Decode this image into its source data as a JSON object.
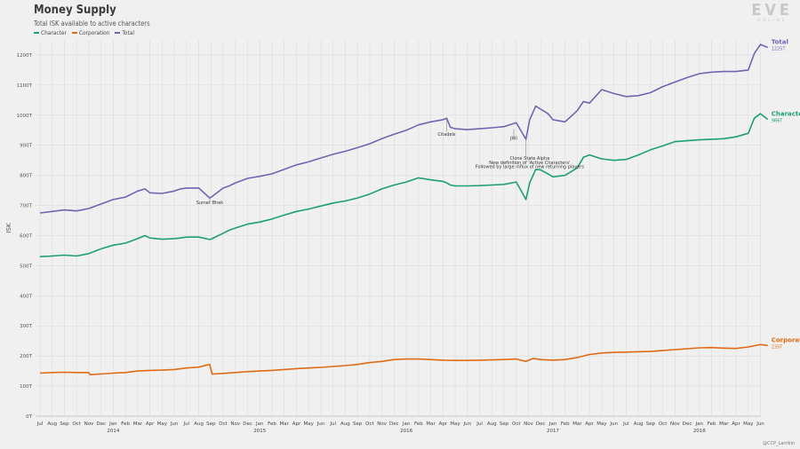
{
  "header": {
    "title": "Money Supply",
    "subtitle": "Total ISK available to active characters"
  },
  "logo": {
    "mark": "EVE",
    "sub": "ONLINE"
  },
  "credit": "@CCP_Larrikin",
  "colors": {
    "character": "#1e9e73",
    "corporation": "#e06b14",
    "total": "#7463b3",
    "grid": "#dcdcdc"
  },
  "chart_data": {
    "type": "line",
    "title": "Money Supply",
    "subtitle": "Total ISK available to active characters",
    "ylabel": "ISK",
    "xlabel": "",
    "ylim": [
      0,
      1250
    ],
    "yticks": [
      0,
      100,
      200,
      300,
      400,
      500,
      600,
      700,
      800,
      900,
      1000,
      1100,
      1200
    ],
    "ytick_labels": [
      "0T",
      "100T",
      "200T",
      "300T",
      "400T",
      "500T",
      "600T",
      "700T",
      "800T",
      "900T",
      "1000T",
      "1100T",
      "1200T"
    ],
    "x_months": [
      "Jul",
      "Aug",
      "Sep",
      "Oct",
      "Nov",
      "Dec",
      "Jan",
      "Feb",
      "Mar",
      "Apr",
      "May",
      "Jun",
      "Jul",
      "Aug",
      "Sep",
      "Oct",
      "Nov",
      "Dec",
      "Jan",
      "Feb",
      "Mar",
      "Apr",
      "May",
      "Jun",
      "Jul",
      "Aug",
      "Sep",
      "Oct",
      "Nov",
      "Dec",
      "Jan",
      "Feb",
      "Mar",
      "Apr",
      "May",
      "Jun",
      "Jul",
      "Aug",
      "Sep",
      "Oct",
      "Nov",
      "Dec",
      "Jan",
      "Feb",
      "Mar",
      "Apr",
      "May",
      "Jun",
      "Jul",
      "Aug",
      "Sep",
      "Oct",
      "Nov",
      "Dec",
      "Jan",
      "Feb",
      "Mar",
      "Apr",
      "May",
      "Jun"
    ],
    "x_years": [
      {
        "label": "2014",
        "month_index": 6
      },
      {
        "label": "2015",
        "month_index": 18
      },
      {
        "label": "2016",
        "month_index": 30
      },
      {
        "label": "2017",
        "month_index": 42
      },
      {
        "label": "2018",
        "month_index": 54
      }
    ],
    "legend": {
      "position": "top-left",
      "entries": [
        "Character",
        "Corporation",
        "Total"
      ]
    },
    "grid": true,
    "series": [
      {
        "name": "Total",
        "end_label": "Total",
        "end_value_label": "1225T",
        "x": [
          0,
          1,
          2,
          3,
          4,
          5,
          6,
          7,
          8,
          8.6,
          9,
          10,
          11,
          11.5,
          12,
          13,
          13.9,
          14.1,
          15,
          15.5,
          16,
          17,
          18,
          19,
          20,
          21,
          22,
          23,
          24,
          25,
          26,
          27,
          28,
          29,
          30,
          31,
          32,
          33,
          33.3,
          33.6,
          34,
          35,
          36,
          37,
          38,
          39,
          39.8,
          40.1,
          40.6,
          41,
          41.6,
          42,
          43,
          44,
          44.5,
          45,
          46,
          47,
          48,
          49,
          50,
          51,
          52,
          53,
          54,
          55,
          56,
          57,
          58,
          58.5,
          59,
          59.6
        ],
        "values": [
          675,
          680,
          685,
          682,
          690,
          705,
          720,
          728,
          748,
          755,
          742,
          740,
          748,
          755,
          758,
          758,
          725,
          730,
          758,
          765,
          775,
          790,
          797,
          805,
          820,
          835,
          845,
          858,
          870,
          880,
          892,
          905,
          922,
          937,
          950,
          968,
          978,
          985,
          990,
          960,
          955,
          952,
          955,
          958,
          962,
          975,
          920,
          985,
          1030,
          1020,
          1005,
          985,
          978,
          1015,
          1045,
          1040,
          1085,
          1072,
          1062,
          1065,
          1075,
          1095,
          1110,
          1125,
          1138,
          1143,
          1145,
          1145,
          1150,
          1205,
          1235,
          1225
        ]
      },
      {
        "name": "Character",
        "end_label": "Character",
        "end_value_label": "986T",
        "x": [
          0,
          1,
          2,
          3,
          4,
          5,
          6,
          7,
          8,
          8.6,
          9,
          10,
          11,
          11.5,
          12,
          13,
          13.9,
          14.1,
          15,
          15.5,
          16,
          17,
          18,
          19,
          20,
          21,
          22,
          23,
          24,
          25,
          26,
          27,
          28,
          29,
          30,
          31,
          32,
          33,
          33.3,
          33.6,
          34,
          35,
          36,
          37,
          38,
          39,
          39.8,
          40.1,
          40.6,
          41,
          41.6,
          42,
          43,
          44,
          44.5,
          45,
          46,
          47,
          48,
          49,
          50,
          51,
          52,
          53,
          54,
          55,
          56,
          57,
          58,
          58.5,
          59,
          59.6
        ],
        "values": [
          530,
          532,
          535,
          532,
          540,
          556,
          568,
          575,
          590,
          600,
          592,
          588,
          590,
          592,
          595,
          595,
          587,
          590,
          608,
          618,
          625,
          638,
          645,
          655,
          668,
          680,
          688,
          698,
          708,
          715,
          725,
          738,
          755,
          768,
          778,
          792,
          785,
          780,
          775,
          768,
          765,
          765,
          766,
          768,
          770,
          778,
          720,
          775,
          820,
          818,
          805,
          795,
          800,
          825,
          860,
          868,
          855,
          850,
          853,
          868,
          885,
          898,
          912,
          915,
          918,
          920,
          922,
          928,
          940,
          990,
          1005,
          986
        ]
      },
      {
        "name": "Corporation",
        "end_label": "Corporation",
        "end_value_label": "235T",
        "x": [
          0,
          1,
          2,
          3,
          4,
          4.1,
          5,
          6,
          7,
          8,
          9,
          10,
          11,
          12,
          13,
          13.9,
          14.1,
          15,
          16,
          17,
          18,
          19,
          20,
          21,
          22,
          23,
          24,
          25,
          26,
          27,
          28,
          29,
          30,
          31,
          32,
          33,
          34,
          35,
          36,
          37,
          38,
          39,
          39.8,
          40.4,
          41,
          42,
          43,
          44,
          45,
          46,
          47,
          48,
          49,
          50,
          51,
          52,
          53,
          54,
          55,
          56,
          57,
          58,
          59,
          59.6
        ],
        "values": [
          143,
          145,
          146,
          145,
          145,
          138,
          140,
          143,
          145,
          150,
          152,
          153,
          155,
          160,
          163,
          172,
          140,
          142,
          145,
          148,
          150,
          152,
          155,
          158,
          160,
          162,
          165,
          168,
          172,
          178,
          182,
          188,
          190,
          190,
          188,
          186,
          185,
          185,
          186,
          187,
          188,
          190,
          182,
          192,
          188,
          186,
          188,
          195,
          205,
          210,
          212,
          213,
          214,
          215,
          218,
          221,
          224,
          227,
          228,
          226,
          225,
          230,
          238,
          235
        ]
      }
    ],
    "annotations": [
      {
        "text": "Sumer Bhek",
        "x": 13.9,
        "y": 705
      },
      {
        "text": "Citadels",
        "x": 33.3,
        "y": 932
      },
      {
        "text": "JWi",
        "x": 38.8,
        "y": 918
      },
      {
        "text": "Clone State Alpha",
        "x": 40.1,
        "y": 852
      },
      {
        "text": "New definition of 'Active Characters'",
        "x": 40.1,
        "y": 838
      },
      {
        "text": "Followed by large influx of new returning players",
        "x": 40.1,
        "y": 824
      }
    ]
  }
}
